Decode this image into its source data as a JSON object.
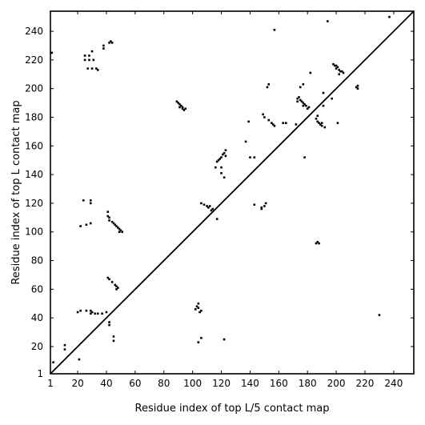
{
  "chart_data": {
    "type": "scatter",
    "title": "",
    "xlabel": "Residue index of top L/5 contact map",
    "ylabel": "Residue index of top L contact map",
    "xlim": [
      1,
      254
    ],
    "ylim": [
      1,
      254
    ],
    "x_ticks": [
      1,
      20,
      40,
      60,
      80,
      100,
      120,
      140,
      160,
      180,
      200,
      220,
      240
    ],
    "y_ticks": [
      1,
      20,
      40,
      60,
      80,
      100,
      120,
      140,
      160,
      180,
      200,
      220,
      240
    ],
    "grid": false,
    "diagonal": [
      [
        1,
        1
      ],
      [
        254,
        254
      ]
    ],
    "series": [
      {
        "values": [
          [
            21,
            11
          ],
          [
            11,
            18
          ],
          [
            11,
            21
          ],
          [
            3,
            9
          ],
          [
            2,
            225
          ],
          [
            25,
            220
          ],
          [
            25,
            223
          ],
          [
            28,
            220
          ],
          [
            28,
            223
          ],
          [
            31,
            220
          ],
          [
            27,
            214
          ],
          [
            30,
            214
          ],
          [
            33,
            214
          ],
          [
            30,
            226
          ],
          [
            34,
            213
          ],
          [
            38,
            228
          ],
          [
            38,
            230
          ],
          [
            42,
            232
          ],
          [
            44,
            232
          ],
          [
            43,
            233
          ],
          [
            24,
            122
          ],
          [
            29,
            122
          ],
          [
            29,
            120
          ],
          [
            26,
            105
          ],
          [
            22,
            104
          ],
          [
            29,
            106
          ],
          [
            41,
            111
          ],
          [
            42,
            110
          ],
          [
            42,
            108
          ],
          [
            44,
            107
          ],
          [
            45,
            106
          ],
          [
            46,
            105
          ],
          [
            47,
            104
          ],
          [
            48,
            103
          ],
          [
            49,
            102
          ],
          [
            49,
            100
          ],
          [
            50,
            101
          ],
          [
            51,
            100
          ],
          [
            41,
            114
          ],
          [
            41,
            68
          ],
          [
            42,
            67
          ],
          [
            44,
            65
          ],
          [
            46,
            63
          ],
          [
            47,
            62
          ],
          [
            48,
            61
          ],
          [
            47,
            60
          ],
          [
            20,
            44
          ],
          [
            22,
            45
          ],
          [
            26,
            45
          ],
          [
            29,
            45
          ],
          [
            30,
            44
          ],
          [
            29,
            43
          ],
          [
            32,
            43
          ],
          [
            34,
            43
          ],
          [
            37,
            43
          ],
          [
            40,
            44
          ],
          [
            42,
            37
          ],
          [
            42,
            35
          ],
          [
            45,
            27
          ],
          [
            45,
            24
          ],
          [
            89,
            191
          ],
          [
            90,
            190
          ],
          [
            91,
            189
          ],
          [
            91,
            187
          ],
          [
            92,
            188
          ],
          [
            93,
            187
          ],
          [
            93,
            186
          ],
          [
            95,
            186
          ],
          [
            94,
            185
          ],
          [
            111,
            117
          ],
          [
            112,
            118
          ],
          [
            114,
            116
          ],
          [
            113,
            115
          ],
          [
            110,
            118
          ],
          [
            106,
            120
          ],
          [
            108,
            119
          ],
          [
            117,
            109
          ],
          [
            117,
            149
          ],
          [
            118,
            150
          ],
          [
            119,
            151
          ],
          [
            120,
            152
          ],
          [
            121,
            154
          ],
          [
            122,
            155
          ],
          [
            123,
            157
          ],
          [
            123,
            153
          ],
          [
            120,
            141
          ],
          [
            122,
            138
          ],
          [
            116,
            145
          ],
          [
            120,
            145
          ],
          [
            104,
            50
          ],
          [
            104,
            47
          ],
          [
            103,
            48
          ],
          [
            102,
            46
          ],
          [
            106,
            45
          ],
          [
            105,
            44
          ],
          [
            104,
            23
          ],
          [
            106,
            26
          ],
          [
            122,
            25
          ],
          [
            137,
            163
          ],
          [
            139,
            177
          ],
          [
            140,
            152
          ],
          [
            143,
            152
          ],
          [
            157,
            241
          ],
          [
            149,
            182
          ],
          [
            150,
            180
          ],
          [
            153,
            178
          ],
          [
            155,
            176
          ],
          [
            156,
            175
          ],
          [
            157,
            174
          ],
          [
            163,
            176
          ],
          [
            165,
            176
          ],
          [
            172,
            175
          ],
          [
            152,
            201
          ],
          [
            153,
            203
          ],
          [
            173,
            193
          ],
          [
            173,
            191
          ],
          [
            174,
            194
          ],
          [
            175,
            192
          ],
          [
            176,
            191
          ],
          [
            177,
            190
          ],
          [
            177,
            188
          ],
          [
            178,
            189
          ],
          [
            179,
            188
          ],
          [
            180,
            186
          ],
          [
            181,
            187
          ],
          [
            175,
            201
          ],
          [
            177,
            203
          ],
          [
            182,
            211
          ],
          [
            178,
            152
          ],
          [
            187,
            93
          ],
          [
            188,
            92
          ],
          [
            186,
            92
          ],
          [
            187,
            177
          ],
          [
            188,
            176
          ],
          [
            189,
            175
          ],
          [
            190,
            176
          ],
          [
            190,
            174
          ],
          [
            192,
            173
          ],
          [
            186,
            179
          ],
          [
            187,
            181
          ],
          [
            191,
            188
          ],
          [
            191,
            197
          ],
          [
            198,
            217
          ],
          [
            199,
            216
          ],
          [
            200,
            216
          ],
          [
            201,
            215
          ],
          [
            200,
            214
          ],
          [
            202,
            213
          ],
          [
            203,
            212
          ],
          [
            204,
            212
          ],
          [
            205,
            211
          ],
          [
            202,
            210
          ],
          [
            201,
            176
          ],
          [
            215,
            202
          ],
          [
            215,
            200
          ],
          [
            214,
            201
          ],
          [
            197,
            193
          ],
          [
            194,
            247
          ],
          [
            237,
            250
          ],
          [
            143,
            119
          ],
          [
            148,
            117
          ],
          [
            150,
            118
          ],
          [
            151,
            120
          ],
          [
            148,
            116
          ],
          [
            230,
            42
          ]
        ]
      }
    ]
  }
}
